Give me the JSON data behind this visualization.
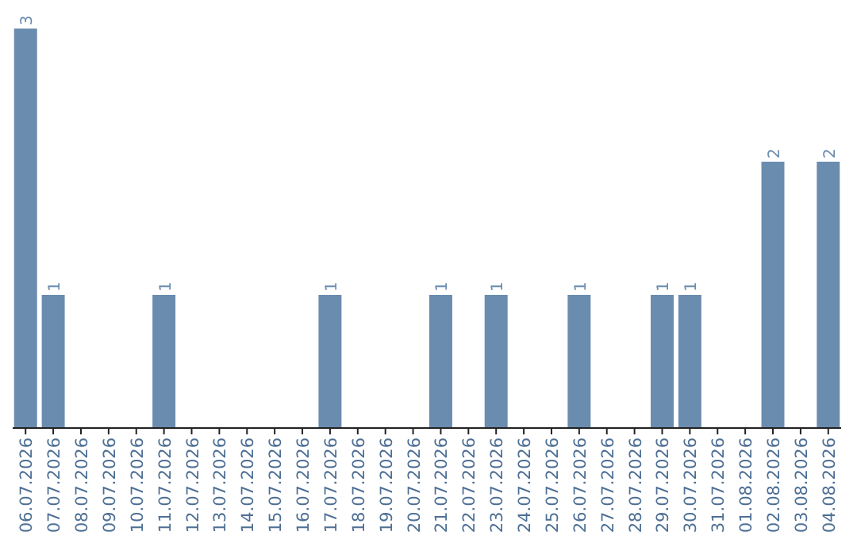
{
  "chart_data": {
    "type": "bar",
    "categories": [
      "06.07.2026",
      "07.07.2026",
      "08.07.2026",
      "09.07.2026",
      "10.07.2026",
      "11.07.2026",
      "12.07.2026",
      "13.07.2026",
      "14.07.2026",
      "15.07.2026",
      "16.07.2026",
      "17.07.2026",
      "18.07.2026",
      "19.07.2026",
      "20.07.2026",
      "21.07.2026",
      "22.07.2026",
      "23.07.2026",
      "24.07.2026",
      "25.07.2026",
      "26.07.2026",
      "27.07.2026",
      "28.07.2026",
      "29.07.2026",
      "30.07.2026",
      "31.07.2026",
      "01.08.2026",
      "02.08.2026",
      "03.08.2026",
      "04.08.2026"
    ],
    "values": [
      3,
      1,
      0,
      0,
      0,
      1,
      0,
      0,
      0,
      0,
      0,
      1,
      0,
      0,
      0,
      1,
      0,
      1,
      0,
      0,
      1,
      0,
      0,
      1,
      1,
      0,
      0,
      2,
      0,
      2
    ],
    "value_labels": [
      "3",
      "1",
      null,
      null,
      null,
      "1",
      null,
      null,
      null,
      null,
      null,
      "1",
      null,
      null,
      null,
      "1",
      null,
      "1",
      null,
      null,
      "1",
      null,
      null,
      "1",
      "1",
      null,
      null,
      "2",
      null,
      "2"
    ],
    "color": "#6a8caf"
  }
}
